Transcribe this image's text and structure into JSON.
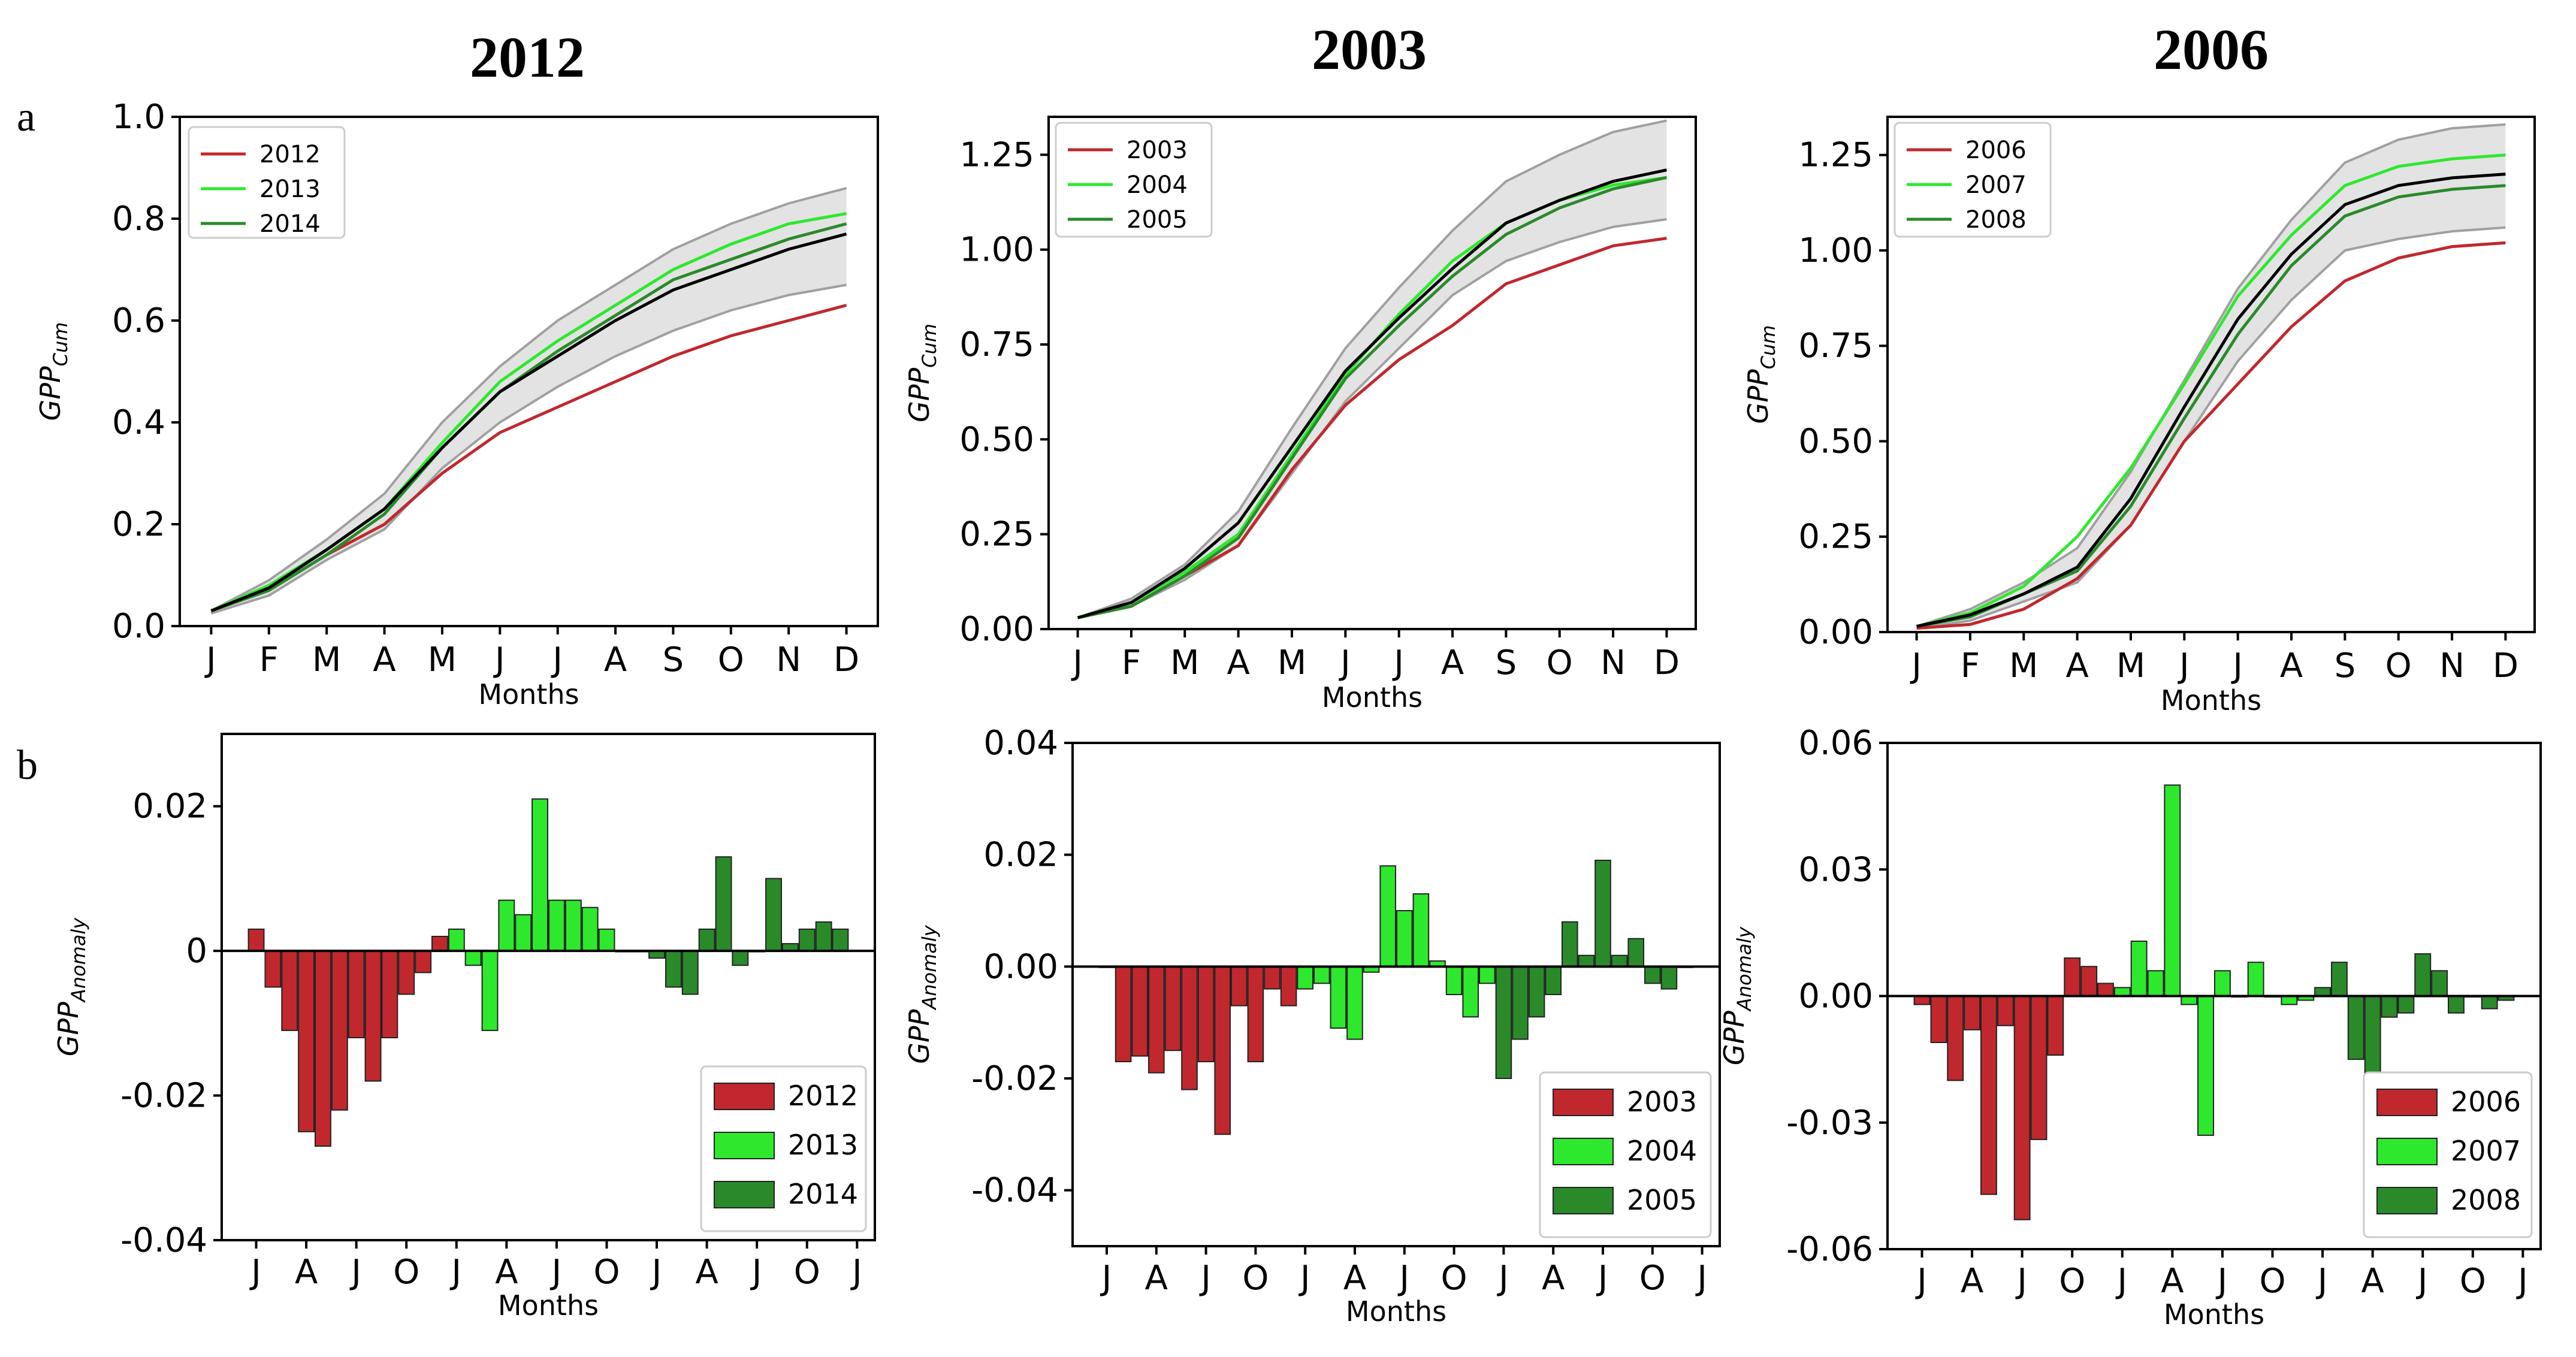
{
  "columns": [
    "2012",
    "2003",
    "2006"
  ],
  "panel_labels": [
    "a",
    "b"
  ],
  "chart_data": [
    {
      "id": "a1",
      "type": "line",
      "ylabel": "GPP",
      "ylabel_sub": "Cum",
      "xlabel": "Months",
      "categories": [
        "J",
        "F",
        "M",
        "A",
        "M",
        "J",
        "J",
        "A",
        "S",
        "O",
        "N",
        "D"
      ],
      "ylim": [
        0,
        1.0
      ],
      "yticks": [
        0.0,
        0.2,
        0.4,
        0.6,
        0.8,
        1.0
      ],
      "ytick_labels": [
        "0.0",
        "0.2",
        "0.4",
        "0.6",
        "0.8",
        "1.0"
      ],
      "band": {
        "upper": [
          0.03,
          0.09,
          0.17,
          0.26,
          0.4,
          0.51,
          0.6,
          0.67,
          0.74,
          0.79,
          0.83,
          0.86
        ],
        "lower": [
          0.025,
          0.06,
          0.13,
          0.19,
          0.31,
          0.4,
          0.47,
          0.53,
          0.58,
          0.62,
          0.65,
          0.67
        ]
      },
      "mean": [
        0.03,
        0.075,
        0.15,
        0.23,
        0.35,
        0.46,
        0.53,
        0.6,
        0.66,
        0.7,
        0.74,
        0.77
      ],
      "series": [
        {
          "name": "2012",
          "color": "#c0282d",
          "values": [
            0.03,
            0.07,
            0.14,
            0.2,
            0.3,
            0.38,
            0.43,
            0.48,
            0.53,
            0.57,
            0.6,
            0.63
          ]
        },
        {
          "name": "2013",
          "color": "#2ee82e",
          "values": [
            0.03,
            0.08,
            0.15,
            0.23,
            0.36,
            0.48,
            0.56,
            0.63,
            0.7,
            0.75,
            0.79,
            0.81
          ]
        },
        {
          "name": "2014",
          "color": "#2a8a2a",
          "values": [
            0.03,
            0.07,
            0.14,
            0.22,
            0.35,
            0.46,
            0.54,
            0.61,
            0.68,
            0.72,
            0.76,
            0.79
          ]
        }
      ],
      "legend": [
        "2012",
        "2013",
        "2014"
      ]
    },
    {
      "id": "a2",
      "type": "line",
      "ylabel": "GPP",
      "ylabel_sub": "Cum",
      "xlabel": "Months",
      "categories": [
        "J",
        "F",
        "M",
        "A",
        "M",
        "J",
        "J",
        "A",
        "S",
        "O",
        "N",
        "D"
      ],
      "ylim": [
        0,
        1.35
      ],
      "yticks": [
        0.0,
        0.25,
        0.5,
        0.75,
        1.0,
        1.25
      ],
      "ytick_labels": [
        "0.00",
        "0.25",
        "0.50",
        "0.75",
        "1.00",
        "1.25"
      ],
      "band": {
        "upper": [
          0.03,
          0.08,
          0.17,
          0.31,
          0.53,
          0.74,
          0.9,
          1.05,
          1.18,
          1.25,
          1.31,
          1.34
        ],
        "lower": [
          0.03,
          0.06,
          0.13,
          0.22,
          0.41,
          0.6,
          0.74,
          0.88,
          0.97,
          1.02,
          1.06,
          1.08
        ]
      },
      "mean": [
        0.03,
        0.07,
        0.16,
        0.28,
        0.48,
        0.68,
        0.82,
        0.95,
        1.07,
        1.13,
        1.18,
        1.21
      ],
      "series": [
        {
          "name": "2003",
          "color": "#c0282d",
          "values": [
            0.03,
            0.06,
            0.14,
            0.22,
            0.42,
            0.59,
            0.71,
            0.8,
            0.91,
            0.96,
            1.01,
            1.03
          ]
        },
        {
          "name": "2004",
          "color": "#2ee82e",
          "values": [
            0.03,
            0.07,
            0.15,
            0.25,
            0.46,
            0.67,
            0.83,
            0.97,
            1.07,
            1.13,
            1.17,
            1.19
          ]
        },
        {
          "name": "2005",
          "color": "#2a8a2a",
          "values": [
            0.03,
            0.06,
            0.14,
            0.24,
            0.45,
            0.66,
            0.8,
            0.93,
            1.04,
            1.11,
            1.16,
            1.19
          ]
        }
      ],
      "legend": [
        "2003",
        "2004",
        "2005"
      ]
    },
    {
      "id": "a3",
      "type": "line",
      "ylabel": "GPP",
      "ylabel_sub": "Cum",
      "xlabel": "Months",
      "categories": [
        "J",
        "F",
        "M",
        "A",
        "M",
        "J",
        "J",
        "A",
        "S",
        "O",
        "N",
        "D"
      ],
      "ylim": [
        0,
        1.35
      ],
      "yticks": [
        0.0,
        0.25,
        0.5,
        0.75,
        1.0,
        1.25
      ],
      "ytick_labels": [
        "0.00",
        "0.25",
        "0.50",
        "0.75",
        "1.00",
        "1.25"
      ],
      "band": {
        "upper": [
          0.015,
          0.06,
          0.13,
          0.22,
          0.42,
          0.66,
          0.9,
          1.08,
          1.23,
          1.29,
          1.32,
          1.33
        ],
        "lower": [
          0.01,
          0.03,
          0.08,
          0.13,
          0.28,
          0.5,
          0.71,
          0.87,
          1.0,
          1.03,
          1.05,
          1.06
        ]
      },
      "mean": [
        0.015,
        0.045,
        0.1,
        0.17,
        0.35,
        0.59,
        0.82,
        0.99,
        1.12,
        1.17,
        1.19,
        1.2
      ],
      "series": [
        {
          "name": "2006",
          "color": "#c0282d",
          "values": [
            0.01,
            0.02,
            0.06,
            0.14,
            0.28,
            0.5,
            0.65,
            0.8,
            0.92,
            0.98,
            1.01,
            1.02
          ]
        },
        {
          "name": "2007",
          "color": "#2ee82e",
          "values": [
            0.015,
            0.05,
            0.12,
            0.25,
            0.43,
            0.65,
            0.88,
            1.04,
            1.17,
            1.22,
            1.24,
            1.25
          ]
        },
        {
          "name": "2008",
          "color": "#2a8a2a",
          "values": [
            0.015,
            0.04,
            0.1,
            0.16,
            0.33,
            0.56,
            0.78,
            0.96,
            1.09,
            1.14,
            1.16,
            1.17
          ]
        }
      ],
      "legend": [
        "2006",
        "2007",
        "2008"
      ]
    },
    {
      "id": "b1",
      "type": "bar",
      "ylabel": "GPP",
      "ylabel_sub": "Anomaly",
      "xlabel": "Months",
      "ylim": [
        -0.04,
        0.03
      ],
      "yticks": [
        -0.04,
        -0.02,
        0,
        0.02
      ],
      "ytick_labels": [
        "-0.04",
        "-0.02",
        "0",
        "0.02"
      ],
      "xticks": [
        "J",
        "A",
        "J",
        "O",
        "J",
        "A",
        "J",
        "O",
        "J",
        "A",
        "J",
        "O",
        "J"
      ],
      "xtick_positions": [
        0,
        3,
        6,
        9,
        12,
        15,
        18,
        21,
        24,
        27,
        30,
        33,
        36
      ],
      "series": [
        {
          "name": "2012",
          "color": "#c0282d",
          "values": [
            0.003,
            -0.005,
            -0.011,
            -0.025,
            -0.027,
            -0.022,
            -0.012,
            -0.018,
            -0.012,
            -0.006,
            -0.003,
            0.002
          ]
        },
        {
          "name": "2013",
          "color": "#2ee82e",
          "values": [
            0.003,
            -0.002,
            -0.011,
            0.007,
            0.005,
            0.021,
            0.007,
            0.007,
            0.006,
            0.003,
            0.0,
            0.0
          ]
        },
        {
          "name": "2014",
          "color": "#2a8a2a",
          "values": [
            -0.001,
            -0.005,
            -0.006,
            0.003,
            0.013,
            -0.002,
            0.0,
            0.01,
            0.001,
            0.003,
            0.004,
            0.003
          ]
        }
      ],
      "legend": [
        "2012",
        "2013",
        "2014"
      ]
    },
    {
      "id": "b2",
      "type": "bar",
      "ylabel": "GPP",
      "ylabel_sub": "Anomaly",
      "xlabel": "Months",
      "ylim": [
        -0.05,
        0.04
      ],
      "yticks": [
        -0.04,
        -0.02,
        0.0,
        0.02,
        0.04
      ],
      "ytick_labels": [
        "-0.04",
        "-0.02",
        "0.00",
        "0.02",
        "0.04"
      ],
      "xticks": [
        "J",
        "A",
        "J",
        "O",
        "J",
        "A",
        "J",
        "O",
        "J",
        "A",
        "J",
        "O",
        "J"
      ],
      "xtick_positions": [
        0,
        3,
        6,
        9,
        12,
        15,
        18,
        21,
        24,
        27,
        30,
        33,
        36
      ],
      "series": [
        {
          "name": "2003",
          "color": "#c0282d",
          "values": [
            0.0,
            -0.017,
            -0.016,
            -0.019,
            -0.015,
            -0.022,
            -0.017,
            -0.03,
            -0.007,
            -0.017,
            -0.004,
            -0.007
          ]
        },
        {
          "name": "2004",
          "color": "#2ee82e",
          "values": [
            -0.004,
            -0.003,
            -0.011,
            -0.013,
            -0.001,
            0.018,
            0.01,
            0.013,
            0.001,
            -0.005,
            -0.009,
            -0.003
          ]
        },
        {
          "name": "2005",
          "color": "#2a8a2a",
          "values": [
            -0.02,
            -0.013,
            -0.009,
            -0.005,
            0.008,
            0.002,
            0.019,
            0.002,
            0.005,
            -0.003,
            -0.004,
            0.0
          ]
        }
      ],
      "legend": [
        "2003",
        "2004",
        "2005"
      ]
    },
    {
      "id": "b3",
      "type": "bar",
      "ylabel": "GPP",
      "ylabel_sub": "Anomaly",
      "xlabel": "Months",
      "ylim": [
        -0.06,
        0.06
      ],
      "yticks": [
        -0.06,
        -0.03,
        0.0,
        0.03,
        0.06
      ],
      "ytick_labels": [
        "-0.06",
        "-0.03",
        "0.00",
        "0.03",
        "0.06"
      ],
      "xticks": [
        "J",
        "A",
        "J",
        "O",
        "J",
        "A",
        "J",
        "O",
        "J",
        "A",
        "J",
        "O",
        "J"
      ],
      "xtick_positions": [
        0,
        3,
        6,
        9,
        12,
        15,
        18,
        21,
        24,
        27,
        30,
        33,
        36
      ],
      "series": [
        {
          "name": "2006",
          "color": "#c0282d",
          "values": [
            -0.002,
            -0.011,
            -0.02,
            -0.008,
            -0.047,
            -0.007,
            -0.053,
            -0.034,
            -0.014,
            0.009,
            0.007,
            0.003
          ]
        },
        {
          "name": "2007",
          "color": "#2ee82e",
          "values": [
            0.002,
            0.013,
            0.006,
            0.05,
            -0.002,
            -0.033,
            0.006,
            0.0,
            0.008,
            0.0,
            -0.002,
            -0.001
          ]
        },
        {
          "name": "2008",
          "color": "#2a8a2a",
          "values": [
            0.002,
            0.008,
            -0.015,
            -0.019,
            -0.005,
            -0.004,
            0.01,
            0.006,
            -0.004,
            0.0,
            -0.003,
            -0.001
          ]
        }
      ],
      "legend": [
        "2006",
        "2007",
        "2008"
      ]
    }
  ],
  "colors": {
    "mean_line": "#000000",
    "band_fill": "#e3e3e3",
    "band_edge": "#a0a0a0"
  }
}
